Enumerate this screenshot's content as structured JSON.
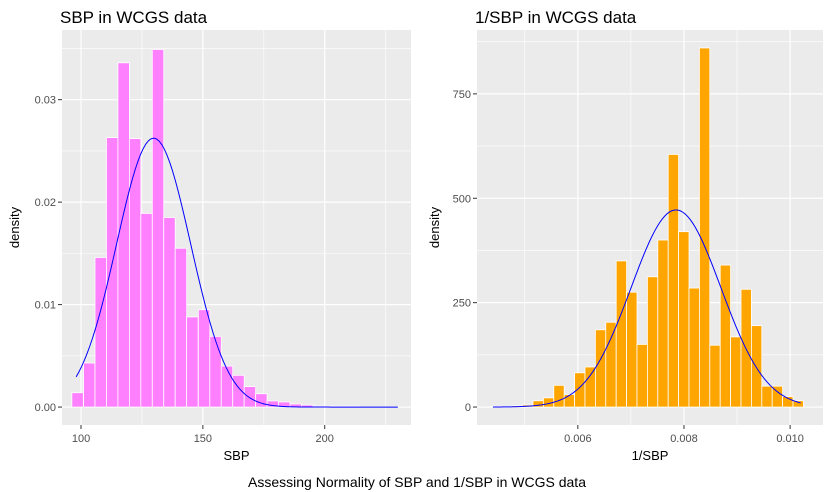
{
  "caption": "Assessing Normality of SBP and 1/SBP in WCGS data",
  "colors": {
    "panel_bg": "#ebebeb",
    "grid": "#ffffff",
    "curve": "#0000ff",
    "bar_outline": "#ffffff"
  },
  "chart_data": [
    {
      "type": "bar",
      "title": "SBP in WCGS data",
      "xlabel": "SBP",
      "ylabel": "density",
      "fill": "#ff80ff",
      "xlim": [
        92.2,
        235.4
      ],
      "ylim": [
        -0.00175,
        0.0368
      ],
      "xticks": [
        100,
        150,
        200
      ],
      "xtick_labels": [
        "100",
        "150",
        "200"
      ],
      "yticks": [
        0,
        0.01,
        0.02,
        0.03
      ],
      "ytick_labels": [
        "0.00",
        "0.01",
        "0.02",
        "0.03"
      ],
      "bin_width": 4.71,
      "bin_centers": [
        98.6,
        103.4,
        108.1,
        112.8,
        117.5,
        122.2,
        126.9,
        131.6,
        136.3,
        141.0,
        145.7,
        150.5,
        155.2,
        159.9,
        164.6,
        169.3,
        174.0,
        178.7,
        183.4,
        188.1,
        192.8,
        197.6,
        202.3,
        207.0,
        211.7,
        216.4,
        221.1,
        225.8,
        230.5
      ],
      "values": [
        0.0014,
        0.0043,
        0.0146,
        0.0263,
        0.0336,
        0.0262,
        0.0189,
        0.0349,
        0.0185,
        0.0155,
        0.0088,
        0.0095,
        0.0069,
        0.004,
        0.0031,
        0.002,
        0.0013,
        0.0006,
        0.0005,
        0.0003,
        0.0002,
        0.0001,
        0.0001,
        0.0001,
        0.0001,
        0.0,
        0.0,
        0.0,
        0.0
      ],
      "normal_curve": {
        "mean": 129.8,
        "sd": 15.2,
        "x_range": [
          98,
          230
        ]
      }
    },
    {
      "type": "bar",
      "title": "1/SBP in WCGS data",
      "xlabel": "1/SBP",
      "ylabel": "density",
      "fill": "#ffa500",
      "xlim": [
        0.0041,
        0.01062
      ],
      "ylim": [
        -43,
        903
      ],
      "xticks": [
        0.006,
        0.008,
        0.01
      ],
      "xtick_labels": [
        "0.006",
        "0.008",
        "0.010"
      ],
      "yticks": [
        0,
        250,
        500,
        750
      ],
      "ytick_labels": [
        "0",
        "250",
        "500",
        "750"
      ],
      "bin_width": 0.000196,
      "bin_centers": [
        0.004469,
        0.004665,
        0.004861,
        0.005057,
        0.005253,
        0.005449,
        0.005645,
        0.005841,
        0.006037,
        0.006233,
        0.006429,
        0.006625,
        0.006821,
        0.007017,
        0.007213,
        0.007409,
        0.007605,
        0.007801,
        0.007997,
        0.008193,
        0.008389,
        0.008585,
        0.008781,
        0.008977,
        0.009173,
        0.009369,
        0.009565,
        0.009761,
        0.009957,
        0.010153
      ],
      "values": [
        2,
        2,
        3,
        5,
        15,
        22,
        52,
        30,
        82,
        96,
        185,
        203,
        350,
        275,
        150,
        312,
        400,
        605,
        420,
        285,
        860,
        148,
        340,
        168,
        282,
        195,
        50,
        50,
        25,
        15
      ],
      "normal_curve": {
        "mean": 0.00785,
        "sd": 0.000845,
        "x_range": [
          0.0044,
          0.0102
        ]
      }
    }
  ]
}
